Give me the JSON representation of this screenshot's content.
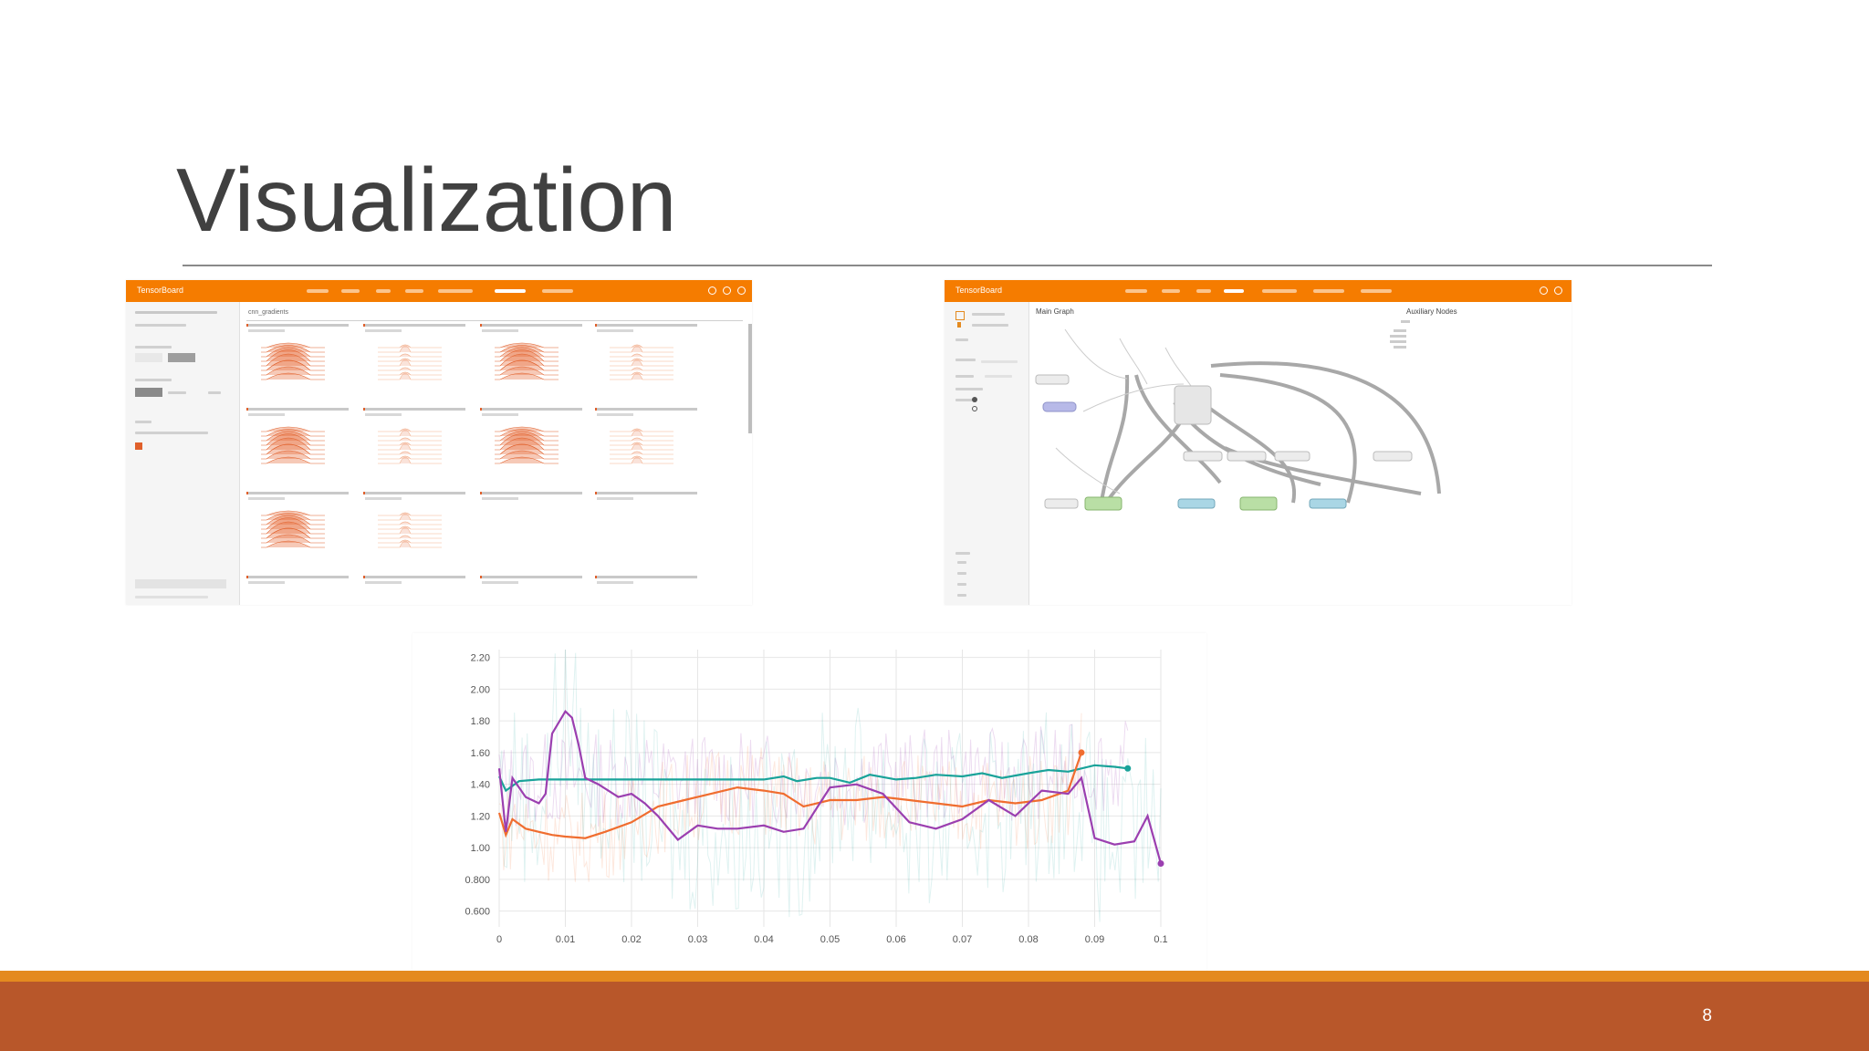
{
  "slide": {
    "title": "Visualization",
    "page_number": "8"
  },
  "colors": {
    "title_text": "#404040",
    "tensorboard_bar": "#f57c00",
    "footer_band": "#b8572a",
    "footer_accent": "#e48a1f",
    "series_teal": "#1aa39a",
    "series_orange": "#f06d2f",
    "series_purple": "#9b3fb0",
    "node_green": "#b9dfa5",
    "node_blue": "#a9d6e5",
    "node_purple": "#b7b9e8"
  },
  "histograms_screenshot": {
    "brand": "TensorBoard",
    "search_text": "cnn_gradients"
  },
  "graph_screenshot": {
    "brand": "TensorBoard",
    "main_graph_title": "Main Graph",
    "aux_nodes_title": "Auxiliary Nodes"
  },
  "chart_data": {
    "type": "line",
    "x_ticks": [
      "0",
      "0.01",
      "0.02",
      "0.03",
      "0.04",
      "0.05",
      "0.06",
      "0.07",
      "0.08",
      "0.09",
      "0.1"
    ],
    "y_ticks": [
      "0.600",
      "0.800",
      "1.00",
      "1.20",
      "1.40",
      "1.60",
      "1.80",
      "2.00",
      "2.20"
    ],
    "xlim": [
      0,
      0.1
    ],
    "ylim": [
      0.5,
      2.25
    ],
    "grid": true,
    "series": [
      {
        "color": "#1aa39a",
        "x": [
          0,
          0.001,
          0.003,
          0.006,
          0.01,
          0.015,
          0.02,
          0.03,
          0.04,
          0.043,
          0.045,
          0.048,
          0.05,
          0.053,
          0.056,
          0.06,
          0.063,
          0.066,
          0.07,
          0.073,
          0.076,
          0.08,
          0.083,
          0.086,
          0.09,
          0.093,
          0.095
        ],
        "y": [
          1.45,
          1.36,
          1.42,
          1.43,
          1.43,
          1.43,
          1.43,
          1.43,
          1.43,
          1.45,
          1.42,
          1.44,
          1.44,
          1.41,
          1.46,
          1.43,
          1.44,
          1.46,
          1.45,
          1.47,
          1.44,
          1.47,
          1.49,
          1.48,
          1.52,
          1.51,
          1.5
        ]
      },
      {
        "color": "#f06d2f",
        "x": [
          0,
          0.001,
          0.002,
          0.004,
          0.006,
          0.008,
          0.01,
          0.013,
          0.016,
          0.02,
          0.024,
          0.028,
          0.032,
          0.036,
          0.04,
          0.043,
          0.046,
          0.05,
          0.054,
          0.058,
          0.062,
          0.066,
          0.07,
          0.074,
          0.078,
          0.082,
          0.086,
          0.088
        ],
        "y": [
          1.22,
          1.08,
          1.18,
          1.12,
          1.1,
          1.08,
          1.07,
          1.06,
          1.1,
          1.16,
          1.26,
          1.3,
          1.34,
          1.38,
          1.36,
          1.34,
          1.26,
          1.3,
          1.3,
          1.32,
          1.3,
          1.28,
          1.26,
          1.3,
          1.28,
          1.3,
          1.36,
          1.6
        ]
      },
      {
        "color": "#9b3fb0",
        "x": [
          0,
          0.001,
          0.002,
          0.004,
          0.006,
          0.007,
          0.008,
          0.01,
          0.011,
          0.012,
          0.013,
          0.015,
          0.018,
          0.02,
          0.022,
          0.024,
          0.027,
          0.03,
          0.033,
          0.036,
          0.04,
          0.043,
          0.046,
          0.05,
          0.054,
          0.058,
          0.062,
          0.066,
          0.07,
          0.074,
          0.078,
          0.082,
          0.086,
          0.088,
          0.09,
          0.093,
          0.096,
          0.098,
          0.1
        ],
        "y": [
          1.5,
          1.1,
          1.44,
          1.32,
          1.28,
          1.34,
          1.72,
          1.86,
          1.82,
          1.65,
          1.44,
          1.4,
          1.32,
          1.34,
          1.28,
          1.2,
          1.05,
          1.14,
          1.12,
          1.12,
          1.14,
          1.1,
          1.12,
          1.38,
          1.4,
          1.34,
          1.16,
          1.12,
          1.18,
          1.3,
          1.2,
          1.36,
          1.34,
          1.44,
          1.06,
          1.02,
          1.04,
          1.2,
          0.9
        ]
      }
    ]
  }
}
